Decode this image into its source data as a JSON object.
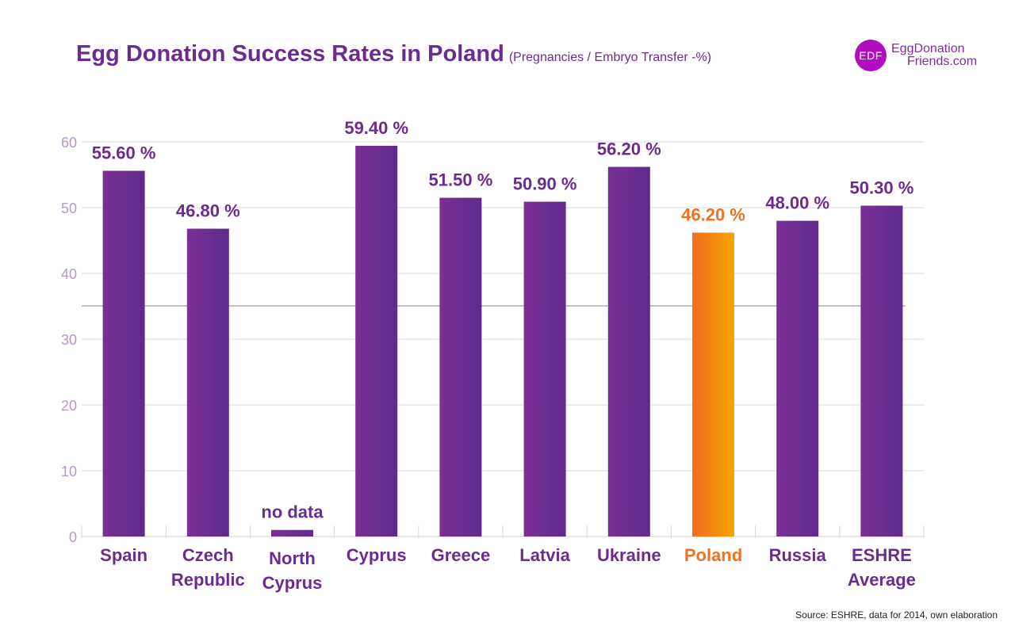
{
  "header": {
    "title": "Egg Donation Success Rates in Poland",
    "subtitle": "(Pregnancies / Embryo Transfer -%)"
  },
  "logo": {
    "badge": "EDF",
    "line1": "EggDonation",
    "line2": "Friends.com"
  },
  "footer": {
    "source": "Source: ESHRE, data for 2014, own elaboration"
  },
  "colors": {
    "bar": "#6b2c91",
    "highlight_start": "#f36c21",
    "highlight_end": "#f7a500",
    "title": "#6b2c91",
    "axis_text": "#b49ac8",
    "highlight_text": "#f37021",
    "grid": "#d9d9d9"
  },
  "chart_data": {
    "type": "bar",
    "title": "Egg Donation Success Rates in Poland",
    "subtitle": "(Pregnancies / Embryo Transfer -%)",
    "xlabel": "",
    "ylabel": "",
    "ylim": [
      0,
      60
    ],
    "yticks": [
      0,
      10,
      20,
      30,
      40,
      50,
      60
    ],
    "grid": true,
    "categories": [
      [
        "Spain"
      ],
      [
        "Czech",
        "Republic"
      ],
      [
        "North",
        "Cyprus"
      ],
      [
        "Cyprus"
      ],
      [
        "Greece"
      ],
      [
        "Latvia"
      ],
      [
        "Ukraine"
      ],
      [
        "Poland"
      ],
      [
        "Russia"
      ],
      [
        "ESHRE",
        "Average"
      ]
    ],
    "values": [
      55.6,
      46.8,
      1,
      59.4,
      51.5,
      50.9,
      56.2,
      46.2,
      48.0,
      50.3
    ],
    "value_labels": [
      "55.60 %",
      "46.80 %",
      "no data",
      "59.40 %",
      "51.50 %",
      "50.90 %",
      "56.20 %",
      "46.20 %",
      "48.00 %",
      "50.30 %"
    ],
    "highlight_index": 7
  }
}
